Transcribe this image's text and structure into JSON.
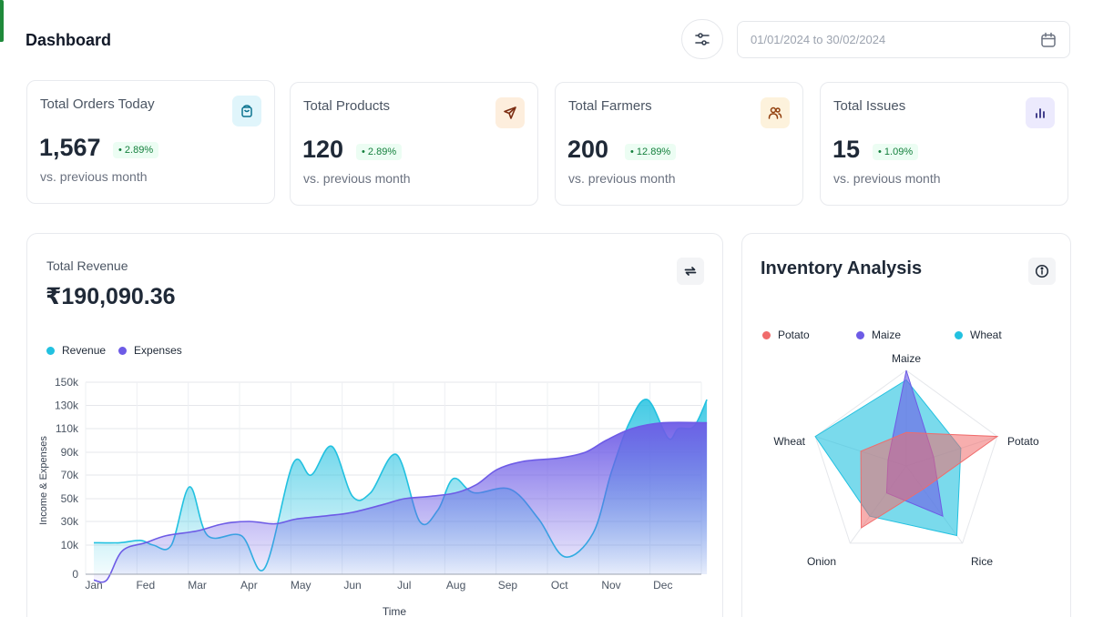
{
  "header": {
    "title": "Dashboard",
    "date_range": "01/01/2024 to 30/02/2024"
  },
  "stats": [
    {
      "label": "Total Orders Today",
      "value": "1,567",
      "badge": "• 2.89%",
      "sub": "vs. previous month",
      "icon": "shopping-bag-icon",
      "icon_bg": "#e0f5fb",
      "icon_color": "#0e7490"
    },
    {
      "label": "Total Products",
      "value": "120",
      "badge": "• 2.89%",
      "sub": "vs. previous month",
      "icon": "send-icon",
      "icon_bg": "#fdeedd",
      "icon_color": "#7c2d12"
    },
    {
      "label": "Total Farmers",
      "value": "200",
      "badge": "• 12.89%",
      "sub": "vs. previous month",
      "icon": "users-icon",
      "icon_bg": "#fdf2dc",
      "icon_color": "#92400e"
    },
    {
      "label": "Total Issues",
      "value": "15",
      "badge": "• 1.09%",
      "sub": "vs. previous month",
      "icon": "bar-chart-icon",
      "icon_bg": "#eceafd",
      "icon_color": "#312e81"
    }
  ],
  "revenue": {
    "label": "Total Revenue",
    "value": "₹190,090.36"
  },
  "colors": {
    "revenue": "#22c1e0",
    "expenses": "#6d5be6",
    "potato": "#f06b6b",
    "maize": "#6d5be6",
    "wheat": "#22c1e0"
  },
  "chart_data": [
    {
      "type": "area",
      "title": "",
      "xlabel": "Time",
      "ylabel": "Income & Expenses",
      "categories": [
        "Jan",
        "Fed",
        "Mar",
        "Apr",
        "May",
        "Jun",
        "Jul",
        "Aug",
        "Sep",
        "Oct",
        "Nov",
        "Dec"
      ],
      "y_ticks": [
        "0",
        "10k",
        "30k",
        "50k",
        "70k",
        "90k",
        "110k",
        "130k",
        "150k"
      ],
      "ylim": [
        0,
        150000
      ],
      "grid": true,
      "legend": "top-left",
      "series": [
        {
          "name": "Revenue",
          "points": [
            [
              0,
              12000
            ],
            [
              0.5,
              12000
            ],
            [
              0.9,
              14000
            ],
            [
              1.15,
              10000
            ],
            [
              1.5,
              10000
            ],
            [
              1.85,
              60000
            ],
            [
              2.2,
              18000
            ],
            [
              2.85,
              18000
            ],
            [
              3.3,
              2000
            ],
            [
              3.85,
              80000
            ],
            [
              4.2,
              70000
            ],
            [
              4.6,
              95000
            ],
            [
              5.0,
              52000
            ],
            [
              5.35,
              55000
            ],
            [
              5.85,
              88000
            ],
            [
              6.3,
              30000
            ],
            [
              6.65,
              40000
            ],
            [
              6.95,
              67000
            ],
            [
              7.35,
              55000
            ],
            [
              8.05,
              58000
            ],
            [
              8.6,
              32000
            ],
            [
              9.1,
              6000
            ],
            [
              9.65,
              20000
            ],
            [
              10.0,
              72000
            ],
            [
              10.35,
              115000
            ],
            [
              10.7,
              135000
            ],
            [
              11.1,
              102000
            ],
            [
              11.3,
              110000
            ],
            [
              11.6,
              112000
            ],
            [
              11.85,
              135000
            ]
          ]
        },
        {
          "name": "Expenses",
          "points": [
            [
              0,
              -2000
            ],
            [
              0.25,
              -2000
            ],
            [
              0.55,
              8000
            ],
            [
              1.0,
              12000
            ],
            [
              1.4,
              18000
            ],
            [
              2.0,
              22000
            ],
            [
              2.5,
              28000
            ],
            [
              3.0,
              30000
            ],
            [
              3.5,
              28000
            ],
            [
              3.9,
              32000
            ],
            [
              4.5,
              35000
            ],
            [
              5.0,
              38000
            ],
            [
              5.6,
              45000
            ],
            [
              6.0,
              50000
            ],
            [
              6.5,
              52000
            ],
            [
              7.0,
              55000
            ],
            [
              7.4,
              62000
            ],
            [
              7.8,
              75000
            ],
            [
              8.3,
              82000
            ],
            [
              9.0,
              85000
            ],
            [
              9.5,
              90000
            ],
            [
              9.9,
              100000
            ],
            [
              10.4,
              110000
            ],
            [
              11.0,
              115000
            ],
            [
              11.85,
              115000
            ]
          ]
        }
      ]
    },
    {
      "type": "radar",
      "title": "Inventory Analysis",
      "axes": [
        "Maize",
        "Potato",
        "Rice",
        "Onion",
        "Wheat"
      ],
      "rmax": 100,
      "legend": "top",
      "series": [
        {
          "name": "Potato",
          "values": [
            35,
            100,
            30,
            80,
            50
          ]
        },
        {
          "name": "Maize",
          "values": [
            100,
            30,
            65,
            35,
            20
          ]
        },
        {
          "name": "Wheat",
          "values": [
            90,
            60,
            90,
            65,
            100
          ]
        }
      ]
    }
  ]
}
